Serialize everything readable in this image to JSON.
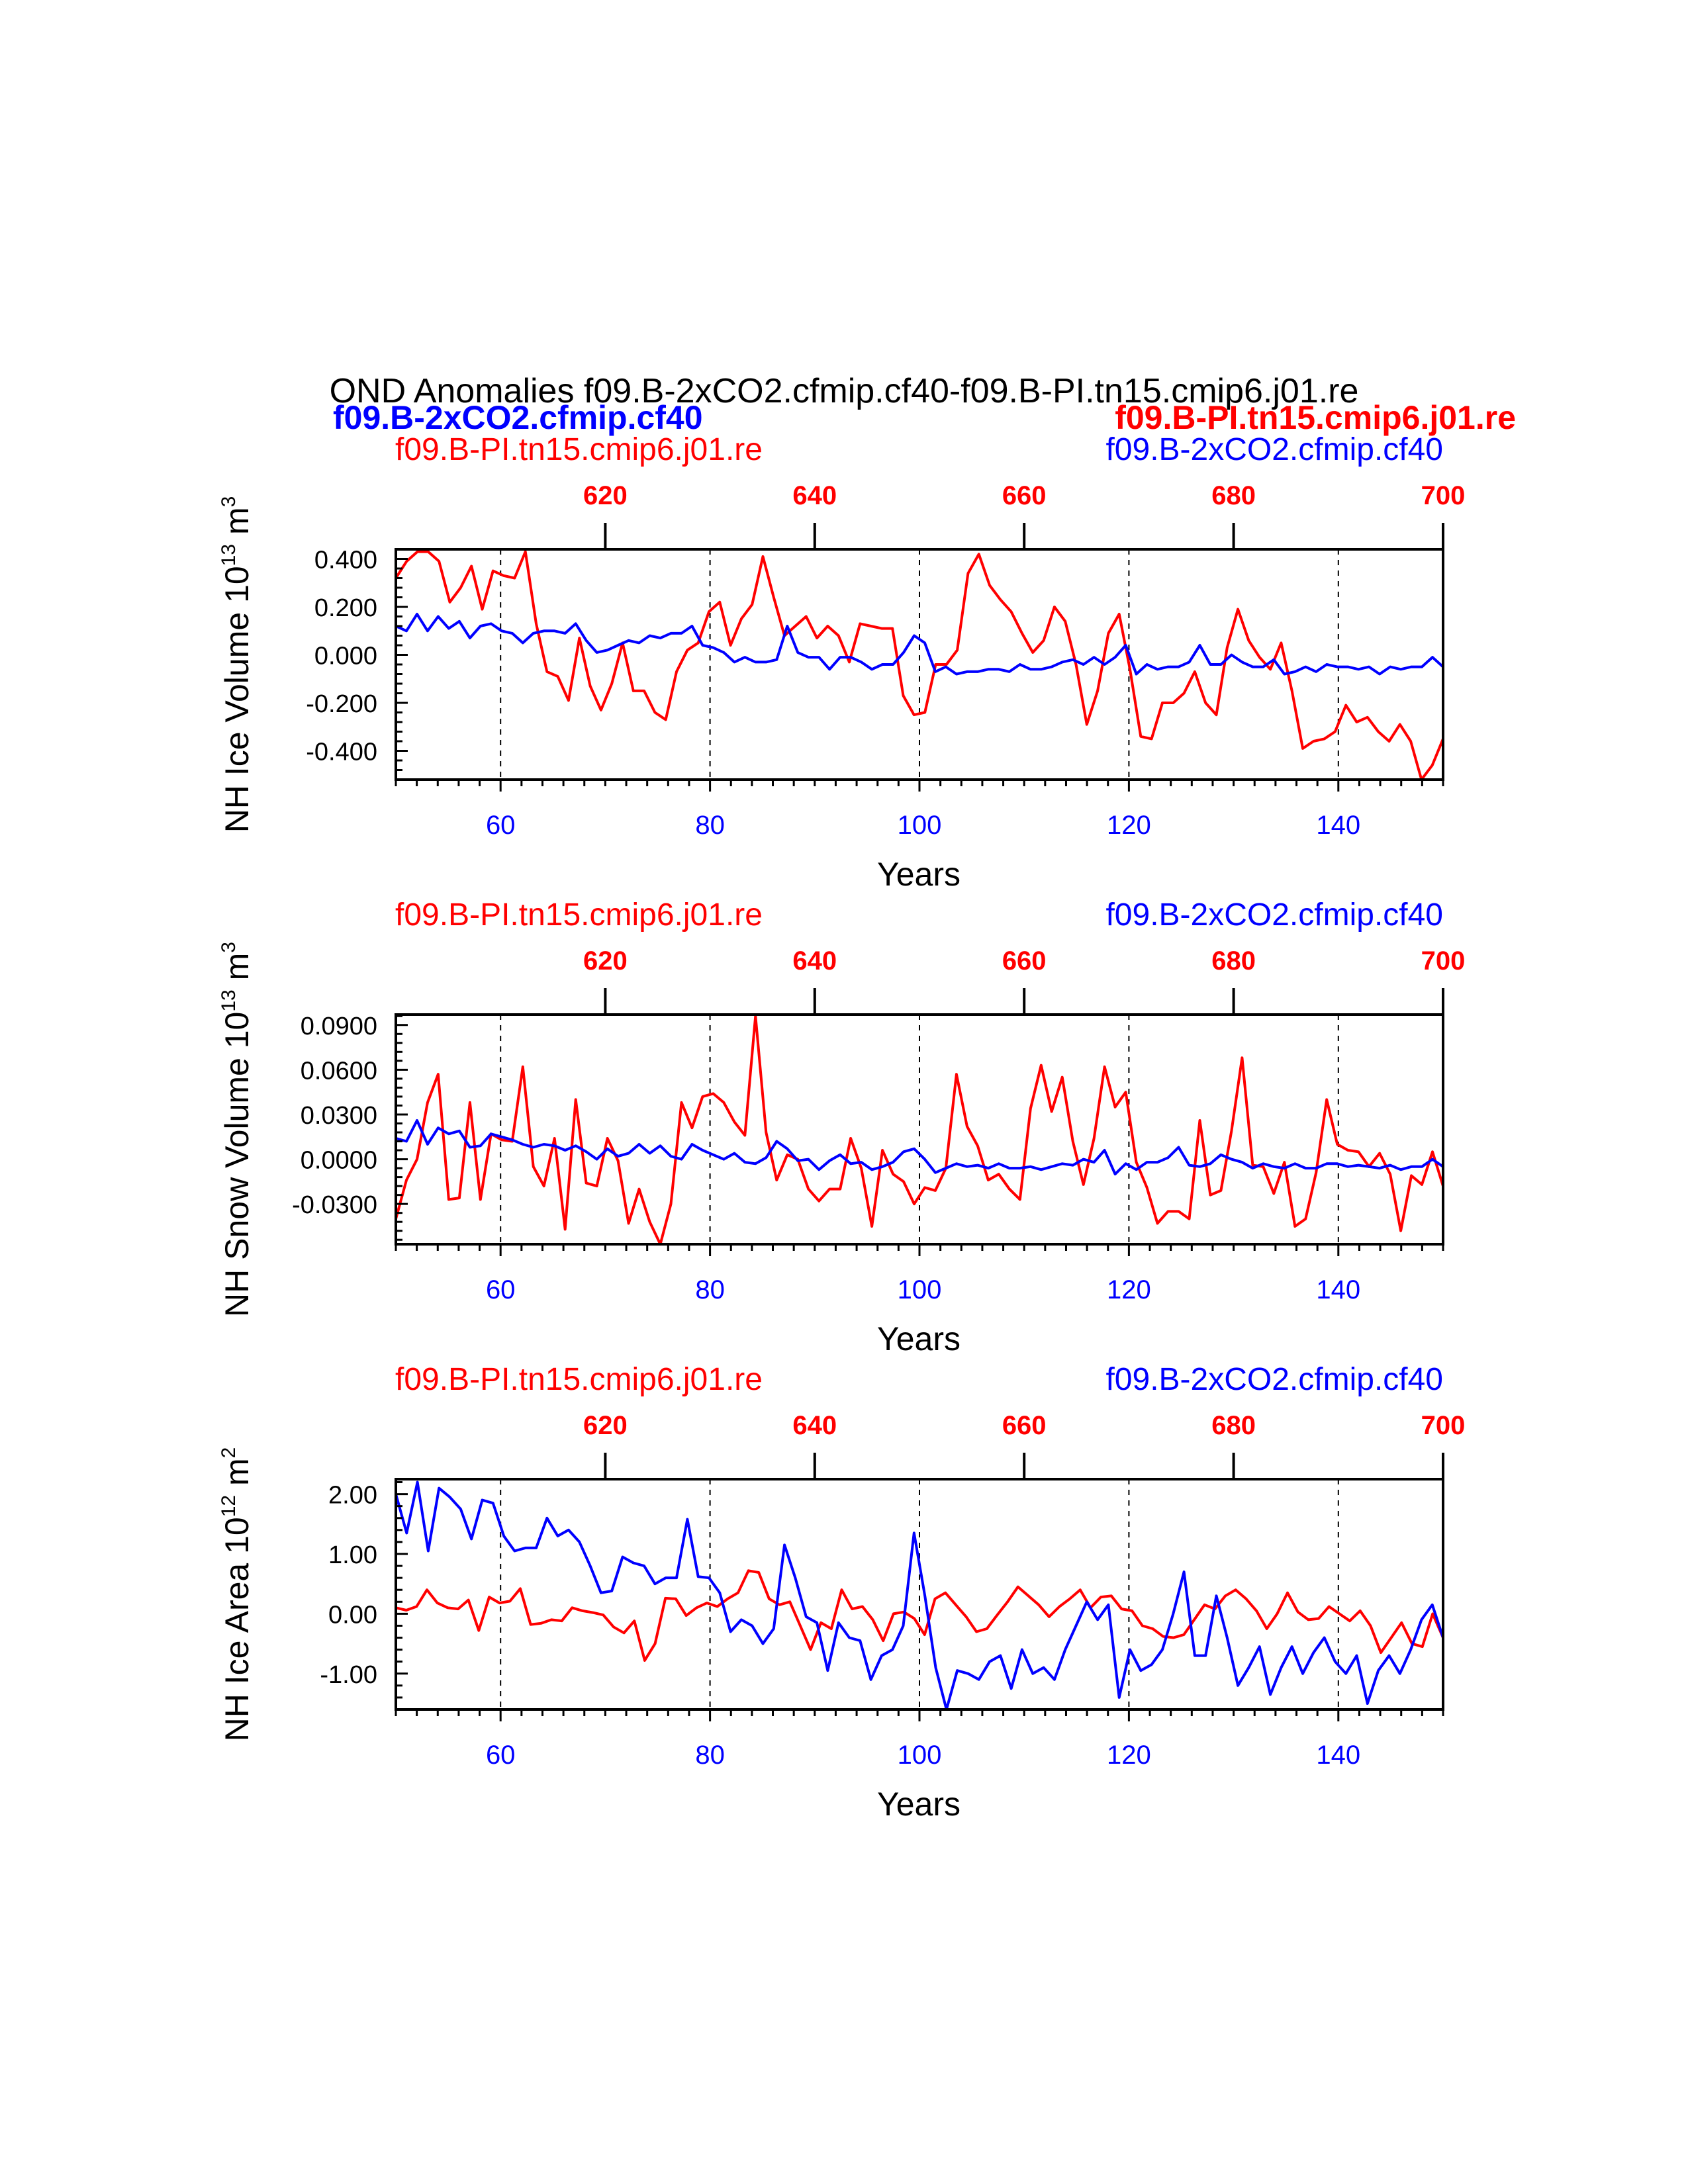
{
  "figure": {
    "title": "OND Anomalies f09.B-2xCO2.cfmip.cf40-f09.B-PI.tn15.cmip6.j01.re",
    "case_a": "f09.B-2xCO2.cfmip.cf40",
    "case_b": "f09.B-PI.tn15.cmip6.j01.re",
    "colors": {
      "case_a": "#0000ff",
      "case_b": "#ff0000",
      "axis": "#000000"
    }
  },
  "chart_data": [
    {
      "type": "line",
      "ylabel_main": "NH Ice Volume 10",
      "ylabel_exp": "13",
      "ylabel_unit": " m",
      "ylabel_unit_exp": "3",
      "xlabel": "Years",
      "left_label": "f09.B-PI.tn15.cmip6.j01.re",
      "right_label": "f09.B-2xCO2.cfmip.cf40",
      "xlim": [
        50,
        150
      ],
      "x_ticks": [
        "60",
        "80",
        "100",
        "120",
        "140"
      ],
      "top_xlim": [
        600,
        700
      ],
      "top_ticks": [
        "620",
        "640",
        "660",
        "680",
        "700"
      ],
      "ylim": [
        -0.52,
        0.44
      ],
      "y_ticks": [
        "0.400",
        "0.200",
        "0.000",
        "-0.200",
        "-0.400"
      ],
      "series": [
        {
          "name": "f09.B-PI.tn15.cmip6.j01.re",
          "color": "#ff0000",
          "values": [
            0.32,
            0.39,
            0.43,
            0.43,
            0.39,
            0.22,
            0.28,
            0.37,
            0.19,
            0.35,
            0.33,
            0.32,
            0.43,
            0.13,
            -0.07,
            -0.09,
            -0.19,
            0.07,
            -0.13,
            -0.23,
            -0.12,
            0.05,
            -0.15,
            -0.15,
            -0.24,
            -0.27,
            -0.07,
            0.02,
            0.05,
            0.18,
            0.22,
            0.04,
            0.15,
            0.21,
            0.41,
            0.24,
            0.08,
            0.12,
            0.16,
            0.07,
            0.12,
            0.08,
            -0.03,
            0.13,
            0.12,
            0.11,
            0.11,
            -0.17,
            -0.25,
            -0.24,
            -0.04,
            -0.04,
            0.02,
            0.34,
            0.42,
            0.29,
            0.23,
            0.18,
            0.09,
            0.01,
            0.06,
            0.2,
            0.14,
            -0.04,
            -0.29,
            -0.15,
            0.09,
            0.17,
            -0.06,
            -0.34,
            -0.35,
            -0.2,
            -0.2,
            -0.16,
            -0.07,
            -0.2,
            -0.25,
            0.03,
            0.19,
            0.06,
            -0.01,
            -0.06,
            0.05,
            -0.15,
            -0.39,
            -0.36,
            -0.35,
            -0.32,
            -0.21,
            -0.28,
            -0.26,
            -0.32,
            -0.36,
            -0.29,
            -0.36,
            -0.53,
            -0.46,
            -0.35
          ]
        },
        {
          "name": "f09.B-2xCO2.cfmip.cf40",
          "color": "#0000ff",
          "values": [
            0.12,
            0.1,
            0.17,
            0.1,
            0.16,
            0.11,
            0.14,
            0.07,
            0.12,
            0.13,
            0.1,
            0.09,
            0.05,
            0.09,
            0.1,
            0.1,
            0.09,
            0.13,
            0.06,
            0.01,
            0.02,
            0.04,
            0.06,
            0.05,
            0.08,
            0.07,
            0.09,
            0.09,
            0.12,
            0.04,
            0.03,
            0.01,
            -0.03,
            -0.01,
            -0.03,
            -0.03,
            -0.02,
            0.12,
            0.01,
            -0.01,
            -0.01,
            -0.06,
            -0.01,
            -0.01,
            -0.03,
            -0.06,
            -0.04,
            -0.04,
            0.01,
            0.08,
            0.05,
            -0.07,
            -0.05,
            -0.08,
            -0.07,
            -0.07,
            -0.06,
            -0.06,
            -0.07,
            -0.04,
            -0.06,
            -0.06,
            -0.05,
            -0.03,
            -0.02,
            -0.04,
            -0.01,
            -0.04,
            -0.01,
            0.04,
            -0.08,
            -0.04,
            -0.06,
            -0.05,
            -0.05,
            -0.03,
            0.04,
            -0.04,
            -0.04,
            0.0,
            -0.03,
            -0.05,
            -0.05,
            -0.02,
            -0.08,
            -0.07,
            -0.05,
            -0.07,
            -0.04,
            -0.05,
            -0.05,
            -0.06,
            -0.05,
            -0.08,
            -0.05,
            -0.06,
            -0.05,
            -0.05,
            -0.01,
            -0.05
          ]
        }
      ]
    },
    {
      "type": "line",
      "ylabel_main": "NH Snow Volume 10",
      "ylabel_exp": "13",
      "ylabel_unit": " m",
      "ylabel_unit_exp": "3",
      "xlabel": "Years",
      "left_label": "f09.B-PI.tn15.cmip6.j01.re",
      "right_label": "f09.B-2xCO2.cfmip.cf40",
      "xlim": [
        50,
        150
      ],
      "x_ticks": [
        "60",
        "80",
        "100",
        "120",
        "140"
      ],
      "top_xlim": [
        600,
        700
      ],
      "top_ticks": [
        "620",
        "640",
        "660",
        "680",
        "700"
      ],
      "ylim": [
        -0.057,
        0.097
      ],
      "y_ticks": [
        "0.0900",
        "0.0600",
        "0.0300",
        "0.0000",
        "-0.0300"
      ],
      "series": [
        {
          "name": "f09.B-PI.tn15.cmip6.j01.re",
          "color": "#ff0000",
          "values": [
            -0.04,
            -0.014,
            0.0,
            0.038,
            0.057,
            -0.027,
            -0.026,
            0.038,
            -0.027,
            0.017,
            0.013,
            0.012,
            0.062,
            -0.005,
            -0.018,
            0.014,
            -0.047,
            0.04,
            -0.016,
            -0.018,
            0.014,
            -0.001,
            -0.043,
            -0.02,
            -0.042,
            -0.057,
            -0.03,
            0.038,
            0.021,
            0.042,
            0.044,
            0.038,
            0.025,
            0.016,
            0.096,
            0.018,
            -0.014,
            0.003,
            0.0,
            -0.02,
            -0.028,
            -0.02,
            -0.02,
            0.014,
            -0.006,
            -0.045,
            0.006,
            -0.01,
            -0.015,
            -0.03,
            -0.019,
            -0.021,
            -0.006,
            0.057,
            0.022,
            0.009,
            -0.014,
            -0.01,
            -0.02,
            -0.027,
            0.034,
            0.063,
            0.032,
            0.055,
            0.012,
            -0.017,
            0.014,
            0.062,
            0.035,
            0.045,
            -0.002,
            -0.019,
            -0.043,
            -0.035,
            -0.035,
            -0.04,
            0.026,
            -0.024,
            -0.021,
            0.019,
            0.068,
            -0.004,
            -0.005,
            -0.023,
            -0.002,
            -0.045,
            -0.04,
            -0.009,
            0.04,
            0.01,
            0.006,
            0.005,
            -0.005,
            0.004,
            -0.01,
            -0.048,
            -0.011,
            -0.017,
            0.005,
            -0.018
          ]
        },
        {
          "name": "f09.B-2xCO2.cfmip.cf40",
          "color": "#0000ff",
          "values": [
            0.014,
            0.012,
            0.026,
            0.01,
            0.021,
            0.017,
            0.019,
            0.008,
            0.009,
            0.017,
            0.015,
            0.013,
            0.01,
            0.008,
            0.01,
            0.009,
            0.006,
            0.009,
            0.005,
            0.0,
            0.007,
            0.002,
            0.004,
            0.01,
            0.004,
            0.009,
            0.002,
            0.0,
            0.01,
            0.006,
            0.003,
            0.0,
            0.004,
            -0.002,
            -0.003,
            0.001,
            0.012,
            0.007,
            -0.001,
            0.0,
            -0.007,
            -0.001,
            0.003,
            -0.003,
            -0.002,
            -0.007,
            -0.005,
            -0.002,
            0.005,
            0.007,
            0.0,
            -0.009,
            -0.006,
            -0.003,
            -0.005,
            -0.004,
            -0.006,
            -0.003,
            -0.006,
            -0.006,
            -0.005,
            -0.007,
            -0.005,
            -0.003,
            -0.004,
            0.0,
            -0.002,
            0.006,
            -0.01,
            -0.003,
            -0.007,
            -0.002,
            -0.002,
            0.001,
            0.008,
            -0.004,
            -0.005,
            -0.003,
            0.003,
            0.0,
            -0.002,
            -0.006,
            -0.003,
            -0.005,
            -0.006,
            -0.003,
            -0.006,
            -0.006,
            -0.003,
            -0.003,
            -0.005,
            -0.004,
            -0.005,
            -0.006,
            -0.004,
            -0.007,
            -0.005,
            -0.005,
            0.0,
            -0.005
          ]
        }
      ]
    },
    {
      "type": "line",
      "ylabel_main": "NH Ice Area 10",
      "ylabel_exp": "12",
      "ylabel_unit": " m",
      "ylabel_unit_exp": "2",
      "xlabel": "Years",
      "left_label": "f09.B-PI.tn15.cmip6.j01.re",
      "right_label": "f09.B-2xCO2.cfmip.cf40",
      "xlim": [
        50,
        150
      ],
      "x_ticks": [
        "60",
        "80",
        "100",
        "120",
        "140"
      ],
      "top_xlim": [
        600,
        700
      ],
      "top_ticks": [
        "620",
        "640",
        "660",
        "680",
        "700"
      ],
      "ylim": [
        -1.6,
        2.25
      ],
      "y_ticks": [
        "2.00",
        "1.00",
        "0.00",
        "-1.00"
      ],
      "series": [
        {
          "name": "f09.B-PI.tn15.cmip6.j01.re",
          "color": "#ff0000",
          "values": [
            0.1,
            0.06,
            0.12,
            0.4,
            0.18,
            0.1,
            0.08,
            0.23,
            -0.28,
            0.28,
            0.18,
            0.21,
            0.42,
            -0.18,
            -0.16,
            -0.1,
            -0.12,
            0.1,
            0.05,
            0.02,
            -0.02,
            -0.22,
            -0.32,
            -0.12,
            -0.78,
            -0.5,
            0.26,
            0.25,
            -0.03,
            0.1,
            0.18,
            0.12,
            0.25,
            0.35,
            0.72,
            0.69,
            0.25,
            0.15,
            0.2,
            -0.2,
            -0.6,
            -0.15,
            -0.25,
            0.4,
            0.08,
            0.12,
            -0.1,
            -0.45,
            0.0,
            0.03,
            -0.08,
            -0.35,
            0.25,
            0.35,
            0.15,
            -0.05,
            -0.3,
            -0.25,
            -0.02,
            0.2,
            0.45,
            0.3,
            0.15,
            -0.05,
            0.12,
            0.25,
            0.4,
            0.1,
            0.28,
            0.3,
            0.08,
            0.05,
            -0.2,
            -0.25,
            -0.38,
            -0.4,
            -0.35,
            -0.1,
            0.15,
            0.08,
            0.3,
            0.4,
            0.25,
            0.05,
            -0.25,
            0.0,
            0.35,
            0.03,
            -0.1,
            -0.08,
            0.12,
            0.0,
            -0.12,
            0.05,
            -0.2,
            -0.65,
            -0.4,
            -0.15,
            -0.5,
            -0.55,
            0.0,
            -0.4
          ]
        },
        {
          "name": "f09.B-2xCO2.cfmip.cf40",
          "color": "#0000ff",
          "values": [
            2.0,
            1.35,
            2.2,
            1.05,
            2.1,
            1.95,
            1.75,
            1.25,
            1.9,
            1.85,
            1.3,
            1.05,
            1.1,
            1.1,
            1.6,
            1.3,
            1.4,
            1.2,
            0.8,
            0.35,
            0.38,
            0.95,
            0.85,
            0.8,
            0.5,
            0.6,
            0.6,
            1.58,
            0.62,
            0.6,
            0.35,
            -0.3,
            -0.1,
            -0.2,
            -0.5,
            -0.25,
            1.15,
            0.6,
            -0.05,
            -0.15,
            -0.95,
            -0.15,
            -0.4,
            -0.45,
            -1.1,
            -0.7,
            -0.6,
            -0.2,
            1.35,
            0.3,
            -0.9,
            -1.65,
            -0.95,
            -1.0,
            -1.1,
            -0.8,
            -0.7,
            -1.25,
            -0.6,
            -1.0,
            -0.9,
            -1.1,
            -0.6,
            -0.2,
            0.2,
            -0.1,
            0.15,
            -1.4,
            -0.6,
            -0.95,
            -0.85,
            -0.6,
            0.0,
            0.7,
            -0.7,
            -0.7,
            0.3,
            -0.4,
            -1.2,
            -0.9,
            -0.55,
            -1.35,
            -0.9,
            -0.55,
            -1.0,
            -0.65,
            -0.4,
            -0.8,
            -1.0,
            -0.7,
            -1.5,
            -0.95,
            -0.7,
            -1.0,
            -0.6,
            -0.1,
            0.15,
            -0.4
          ]
        }
      ]
    }
  ]
}
